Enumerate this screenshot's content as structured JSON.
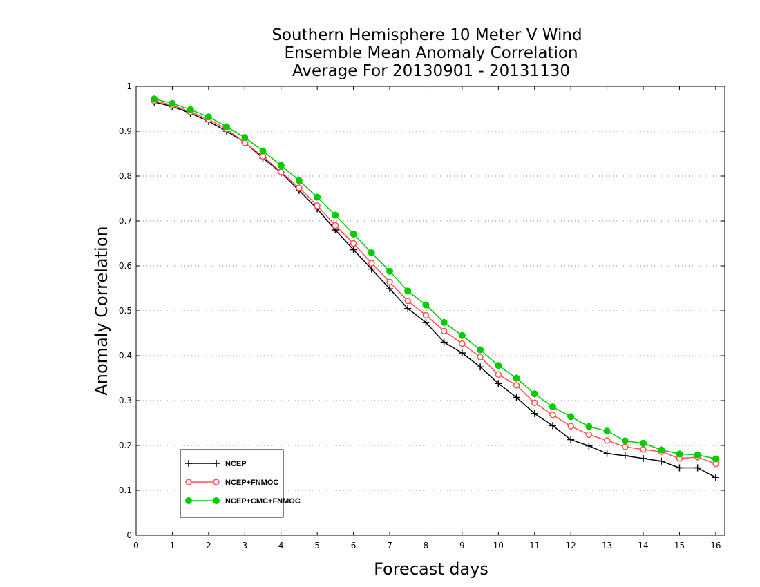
{
  "chart_data": {
    "type": "line",
    "title_lines": [
      "Southern Hemisphere 10 Meter V Wind",
      "Ensemble Mean Anomaly Correlation",
      "Average For 20130901 - 20131130"
    ],
    "xlabel": "Forecast days",
    "ylabel": "Anomaly Correlation",
    "xlim": [
      0,
      16.25
    ],
    "ylim": [
      0,
      1
    ],
    "x_ticks": [
      0,
      1,
      2,
      3,
      4,
      5,
      6,
      7,
      8,
      9,
      10,
      11,
      12,
      13,
      14,
      15,
      16
    ],
    "y_ticks": [
      0,
      0.1,
      0.2,
      0.3,
      0.4,
      0.5,
      0.6,
      0.7,
      0.8,
      0.9,
      1
    ],
    "y_tick_labels": [
      "0",
      "0.1",
      "0.2",
      "0.3",
      "0.4",
      "0.5",
      "0.6",
      "0.7",
      "0.8",
      "0.9",
      "1"
    ],
    "grid": "horizontal dotted",
    "legend_position": "bottom-left",
    "x": [
      0.5,
      1,
      1.5,
      2,
      2.5,
      3,
      3.5,
      4,
      4.5,
      5,
      5.5,
      6,
      6.5,
      7,
      7.5,
      8,
      8.5,
      9,
      9.5,
      10,
      10.5,
      11,
      11.5,
      12,
      12.5,
      13,
      13.5,
      14,
      14.5,
      15,
      15.5,
      16
    ],
    "series": [
      {
        "name": "NCEP",
        "color": "#000000",
        "marker": "plus",
        "values": [
          0.965,
          0.955,
          0.94,
          0.922,
          0.9,
          0.875,
          0.84,
          0.808,
          0.768,
          0.727,
          0.68,
          0.636,
          0.593,
          0.549,
          0.505,
          0.474,
          0.43,
          0.406,
          0.375,
          0.338,
          0.307,
          0.271,
          0.244,
          0.213,
          0.199,
          0.182,
          0.177,
          0.171,
          0.165,
          0.15,
          0.15,
          0.129
        ]
      },
      {
        "name": "NCEP+FNMOC",
        "color": "#ff5050",
        "marker": "open-circle",
        "values": [
          0.968,
          0.958,
          0.943,
          0.926,
          0.905,
          0.874,
          0.844,
          0.809,
          0.774,
          0.734,
          0.69,
          0.65,
          0.606,
          0.564,
          0.522,
          0.49,
          0.455,
          0.427,
          0.397,
          0.358,
          0.334,
          0.295,
          0.268,
          0.243,
          0.224,
          0.211,
          0.197,
          0.191,
          0.186,
          0.171,
          0.174,
          0.159
        ]
      },
      {
        "name": "NCEP+CMC+FNMOC",
        "color": "#00cc00",
        "marker": "filled-circle",
        "values": [
          0.972,
          0.962,
          0.948,
          0.932,
          0.91,
          0.886,
          0.856,
          0.824,
          0.79,
          0.753,
          0.713,
          0.671,
          0.629,
          0.588,
          0.544,
          0.513,
          0.474,
          0.445,
          0.413,
          0.378,
          0.35,
          0.315,
          0.286,
          0.264,
          0.242,
          0.232,
          0.21,
          0.205,
          0.19,
          0.181,
          0.179,
          0.17
        ]
      }
    ]
  }
}
